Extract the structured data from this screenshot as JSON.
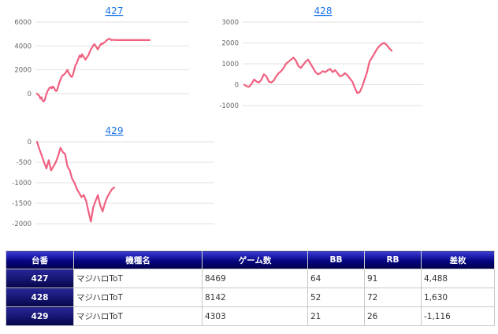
{
  "chart_data": [
    {
      "type": "line",
      "title": "427",
      "ylim": [
        -1000,
        6000
      ],
      "yticks": [
        6000,
        4000,
        2000,
        0
      ],
      "grid": true,
      "x": [
        0,
        1,
        2,
        3,
        4,
        5,
        6,
        7,
        8,
        9,
        10,
        11,
        12,
        13,
        14,
        15,
        16,
        17,
        18,
        19,
        20,
        21,
        22,
        23,
        24,
        25,
        26,
        27,
        28,
        29,
        30,
        31,
        32,
        33,
        34,
        35,
        36,
        37,
        38,
        39,
        40,
        41,
        42,
        43,
        44,
        45,
        46,
        47,
        48,
        49,
        50,
        51,
        52,
        53,
        54,
        55,
        56,
        57,
        58,
        59,
        60,
        61,
        62,
        63,
        64,
        65,
        66,
        67,
        68,
        69,
        70,
        71,
        72,
        73,
        74,
        75,
        76,
        77,
        78,
        79,
        80,
        81,
        82,
        83,
        84,
        85,
        86,
        87,
        88,
        89,
        90,
        91,
        92,
        93,
        94,
        95,
        96,
        97,
        98,
        99,
        100
      ],
      "series": [
        {
          "values": [
            0,
            -90,
            -200,
            -420,
            -300,
            -600,
            -650,
            -500,
            -150,
            150,
            320,
            480,
            550,
            430,
            600,
            500,
            300,
            200,
            350,
            700,
            1000,
            1200,
            1450,
            1550,
            1600,
            1700,
            1850,
            2000,
            1750,
            1600,
            1450,
            1400,
            1650,
            2000,
            2350,
            2500,
            2750,
            3000,
            3200,
            3050,
            3300,
            3150,
            3000,
            2850,
            3000,
            3150,
            3300,
            3550,
            3750,
            3900,
            4050,
            4150,
            4000,
            3850,
            3700,
            3900,
            4050,
            4200,
            4150,
            4250,
            4300,
            4400,
            4488,
            4550,
            4600,
            4580,
            4488,
            4500,
            4520,
            4500,
            4490,
            4488,
            4488,
            4488,
            4488,
            4488,
            4488,
            4488,
            4488,
            4488,
            4488,
            4488,
            4488,
            4488,
            4488,
            4488,
            4488,
            4488,
            4488,
            4488,
            4488,
            4488,
            4488,
            4488,
            4488,
            4488,
            4488,
            4488,
            4488,
            4488,
            4488
          ]
        }
      ]
    },
    {
      "type": "line",
      "title": "428",
      "ylim": [
        -1000,
        3000
      ],
      "yticks": [
        3000,
        2000,
        1000,
        0,
        -1000
      ],
      "grid": true,
      "series": [
        {
          "values": [
            0,
            -80,
            -100,
            50,
            250,
            150,
            100,
            250,
            500,
            400,
            150,
            100,
            200,
            400,
            550,
            650,
            800,
            1000,
            1100,
            1200,
            1300,
            1150,
            900,
            800,
            950,
            1100,
            1200,
            1000,
            800,
            600,
            500,
            550,
            650,
            600,
            700,
            750,
            600,
            700,
            550,
            400,
            450,
            550,
            450,
            300,
            150,
            -150,
            -400,
            -350,
            -100,
            250,
            600,
            1100,
            1300,
            1500,
            1700,
            1850,
            1950,
            2000,
            1900,
            1750,
            1630
          ]
        }
      ]
    },
    {
      "type": "line",
      "title": "429",
      "ylim": [
        -2000,
        0
      ],
      "yticks": [
        0,
        -500,
        -1000,
        -1500,
        -2000
      ],
      "grid": true,
      "series": [
        {
          "values": [
            0,
            -180,
            -330,
            -500,
            -650,
            -450,
            -700,
            -600,
            -500,
            -350,
            -150,
            -250,
            -300,
            -600,
            -700,
            -900,
            -1000,
            -1150,
            -1250,
            -1350,
            -1300,
            -1450,
            -1700,
            -1950,
            -1600,
            -1450,
            -1300,
            -1550,
            -1700,
            -1500,
            -1350,
            -1250,
            -1160,
            -1116
          ]
        }
      ]
    }
  ],
  "table": {
    "headers": [
      "台番",
      "機種名",
      "ゲーム数",
      "BB",
      "RB",
      "差枚"
    ],
    "rows": [
      {
        "no": "427",
        "model": "マジハロToT",
        "games": "8469",
        "bb": "64",
        "rb": "91",
        "diff": "4,488"
      },
      {
        "no": "428",
        "model": "マジハロToT",
        "games": "8142",
        "bb": "52",
        "rb": "72",
        "diff": "1,630"
      },
      {
        "no": "429",
        "model": "マジハロToT",
        "games": "4303",
        "bb": "21",
        "rb": "26",
        "diff": "-1,116"
      }
    ]
  },
  "colors": {
    "line": "#f06080",
    "header_bg": "#050580",
    "negative": "#e01010",
    "link": "#1a73e8"
  }
}
